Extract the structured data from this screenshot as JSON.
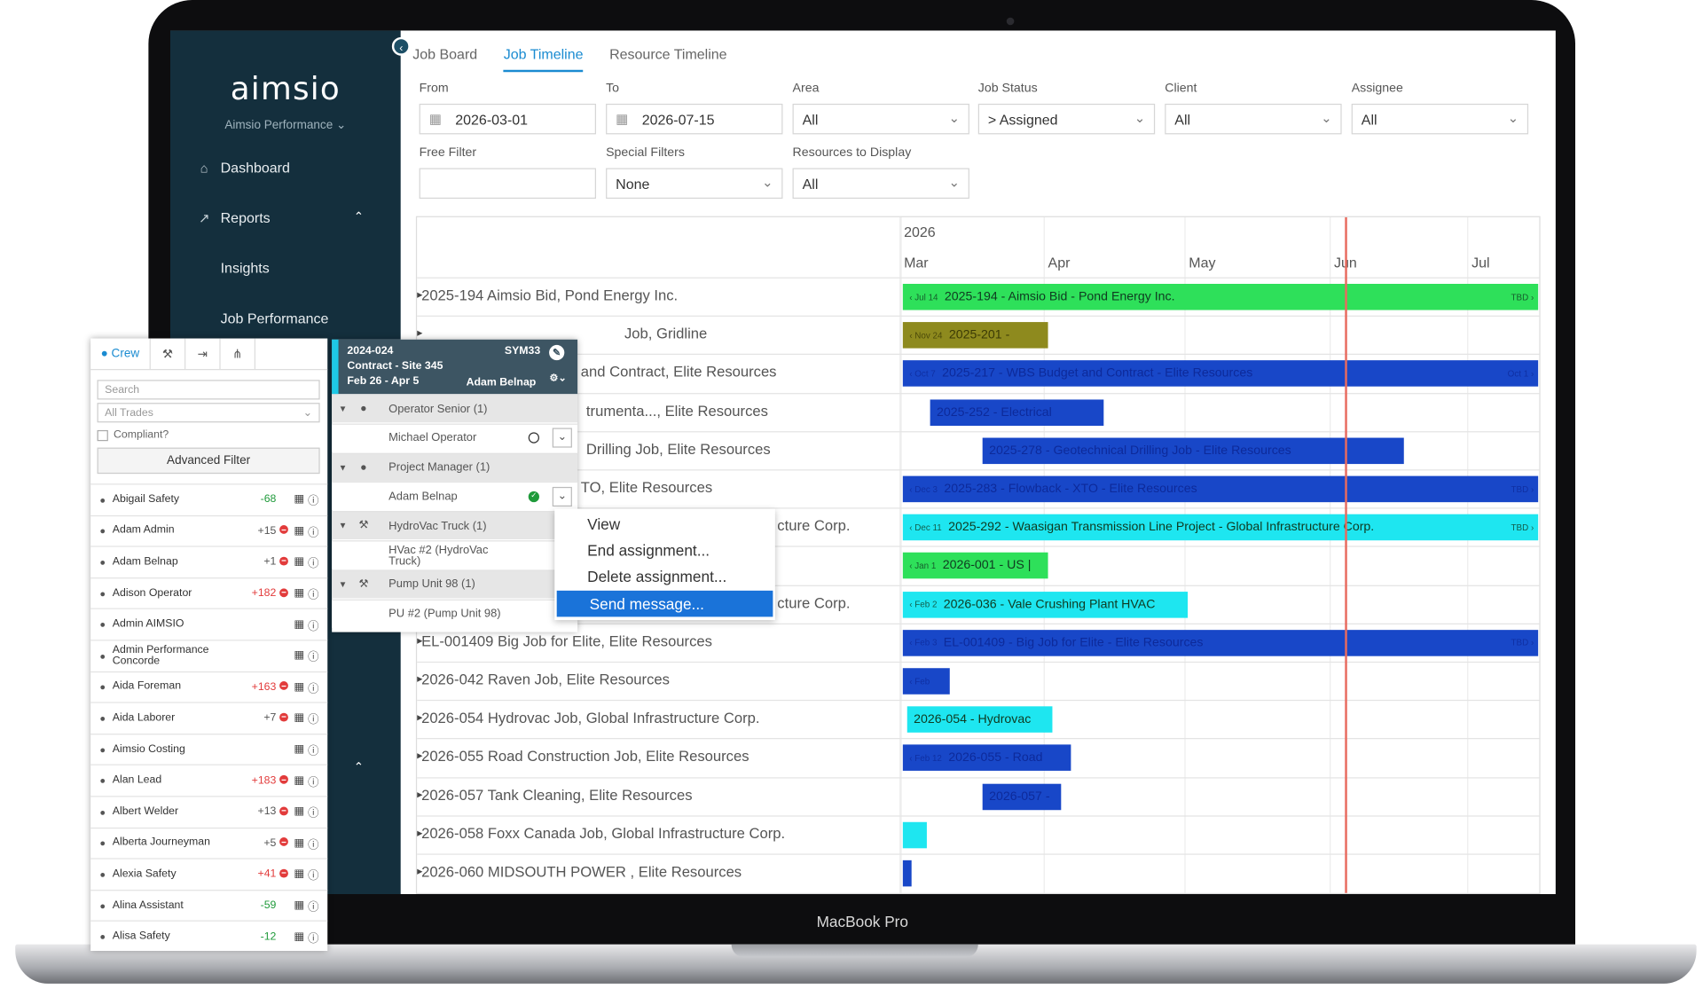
{
  "device_label": "MacBook Pro",
  "app": {
    "logo": "aimsio",
    "org": "Aimsio Performance ⌄"
  },
  "sidebar": {
    "items": [
      {
        "label": "Dashboard",
        "icon": "home-icon"
      },
      {
        "label": "Reports",
        "icon": "chart-icon"
      },
      {
        "label": "Insights"
      },
      {
        "label": "Job Performance"
      }
    ]
  },
  "tabs": [
    "Job Board",
    "Job Timeline",
    "Resource Timeline"
  ],
  "filters": {
    "from_label": "From",
    "from_value": "2026-03-01",
    "to_label": "To",
    "to_value": "2026-07-15",
    "area_label": "Area",
    "area_value": "All",
    "job_status_label": "Job Status",
    "job_status_value": "> Assigned",
    "client_label": "Client",
    "client_value": "All",
    "assignee_label": "Assignee",
    "assignee_value": "All",
    "free_filter_label": "Free Filter",
    "free_filter_value": "",
    "special_filters_label": "Special Filters",
    "special_filters_value": "None",
    "resources_label": "Resources to Display",
    "resources_value": "All"
  },
  "timeline": {
    "year": "2026",
    "months": [
      "Mar",
      "Apr",
      "May",
      "Jun",
      "Jul"
    ],
    "rows": [
      {
        "label": "2025-194 Aimsio Bid, Pond Energy Inc.",
        "bar": "2025-194 - Aimsio Bid - Pond Energy Inc.",
        "start_tag": "Jul 14",
        "end_tag": "TBD",
        "color": "#2ee05a"
      },
      {
        "label": "Job, Gridline",
        "bar": "2025-201 -",
        "start_tag": "Nov 24",
        "end_tag": "",
        "color": "#8e8a1e"
      },
      {
        "label": "and Contract, Elite Resources",
        "bar": "2025-217 - WBS Budget and Contract - Elite Resources",
        "start_tag": "Oct 7",
        "end_tag": "Oct 1",
        "color": "#1847c8"
      },
      {
        "label": "trumenta..., Elite Resources",
        "bar": "2025-252 - Electrical",
        "start_tag": "",
        "end_tag": "",
        "color": "#1847c8"
      },
      {
        "label": "Drilling Job, Elite Resources",
        "bar": "2025-278 - Geotechnical Drilling Job - Elite Resources",
        "start_tag": "",
        "end_tag": "",
        "color": "#1847c8"
      },
      {
        "label": "TO, Elite Resources",
        "bar": "2025-283 - Flowback - XTO - Elite Resources",
        "start_tag": "Dec 3",
        "end_tag": "TBD",
        "color": "#1847c8"
      },
      {
        "label": "cture Corp.",
        "bar": "2025-292 - Waasigan Transmission Line Project - Global Infrastructure Corp.",
        "start_tag": "Dec 11",
        "end_tag": "TBD",
        "color": "#1ee6f0"
      },
      {
        "label": "",
        "bar": "2026-001 - US |",
        "start_tag": "Jan 1",
        "end_tag": "",
        "color": "#2ee05a"
      },
      {
        "label": "cture Corp.",
        "bar": "2026-036 - Vale Crushing Plant HVAC",
        "start_tag": "Feb 2",
        "end_tag": "",
        "color": "#1ee6f0"
      },
      {
        "label": "EL-001409 Big Job for Elite, Elite Resources",
        "bar": "EL-001409 - Big Job for Elite - Elite Resources",
        "start_tag": "Feb 3",
        "end_tag": "TBD",
        "color": "#1847c8"
      },
      {
        "label": "2026-042 Raven Job, Elite Resources",
        "bar": "",
        "start_tag": "Feb",
        "end_tag": "",
        "color": "#1847c8"
      },
      {
        "label": "2026-054 Hydrovac Job, Global Infrastructure Corp.",
        "bar": "2026-054 - Hydrovac",
        "start_tag": "",
        "end_tag": "",
        "color": "#1ee6f0"
      },
      {
        "label": "2026-055 Road Construction Job, Elite Resources",
        "bar": "2026-055 - Road",
        "start_tag": "Feb 12",
        "end_tag": "",
        "color": "#1847c8"
      },
      {
        "label": "2026-057 Tank Cleaning, Elite Resources",
        "bar": "2026-057 -",
        "start_tag": "",
        "end_tag": "",
        "color": "#1847c8"
      },
      {
        "label": "2026-058 Foxx Canada Job, Global Infrastructure Corp.",
        "bar": "",
        "start_tag": "",
        "end_tag": "",
        "color": "#1ee6f0"
      },
      {
        "label": "2026-060 MIDSOUTH POWER , Elite Resources",
        "bar": "",
        "start_tag": "",
        "end_tag": "",
        "color": "#1847c8"
      }
    ]
  },
  "crew_panel": {
    "tab_crew": "Crew",
    "search_placeholder": "Search",
    "trades_value": "All Trades",
    "compliant_label": "Compliant?",
    "advanced_filter": "Advanced Filter",
    "people": [
      {
        "name": "Abigail Safety",
        "score": "-68",
        "score_color": "#1f9a3a",
        "alert": false
      },
      {
        "name": "Adam Admin",
        "score": "+15",
        "score_color": "#555",
        "alert": true
      },
      {
        "name": "Adam Belnap",
        "score": "+1",
        "score_color": "#555",
        "alert": true
      },
      {
        "name": "Adison Operator",
        "score": "+182",
        "score_color": "#e23b3b",
        "alert": true
      },
      {
        "name": "Admin AIMSIO",
        "score": "",
        "score_color": "#555",
        "alert": false
      },
      {
        "name": "Admin Performance Concorde",
        "score": "",
        "score_color": "#555",
        "alert": false
      },
      {
        "name": "Aida Foreman",
        "score": "+163",
        "score_color": "#e23b3b",
        "alert": true
      },
      {
        "name": "Aida Laborer",
        "score": "+7",
        "score_color": "#555",
        "alert": true
      },
      {
        "name": "Aimsio Costing",
        "score": "",
        "score_color": "#555",
        "alert": false
      },
      {
        "name": "Alan Lead",
        "score": "+183",
        "score_color": "#e23b3b",
        "alert": true
      },
      {
        "name": "Albert Welder",
        "score": "+13",
        "score_color": "#555",
        "alert": true
      },
      {
        "name": "Alberta Journeyman",
        "score": "+5",
        "score_color": "#555",
        "alert": true
      },
      {
        "name": "Alexia Safety",
        "score": "+41",
        "score_color": "#e23b3b",
        "alert": true
      },
      {
        "name": "Alina Assistant",
        "score": "-59",
        "score_color": "#1f9a3a",
        "alert": false
      },
      {
        "name": "Alisa Safety",
        "score": "-12",
        "score_color": "#1f9a3a",
        "alert": false
      }
    ]
  },
  "job_popup": {
    "job_id": "2024-024",
    "code": "SYM33",
    "title": "Contract - Site 345",
    "dates": "Feb 26 - Apr 5",
    "owner": "Adam Belnap",
    "rows": [
      {
        "label": "Operator Senior (1)",
        "type": "group",
        "icon": "person-icon"
      },
      {
        "label": "Michael Operator",
        "type": "item",
        "status": "open"
      },
      {
        "label": "Project Manager (1)",
        "type": "group",
        "icon": "person-icon"
      },
      {
        "label": "Adam Belnap",
        "type": "item",
        "status": "done"
      },
      {
        "label": "HydroVac Truck (1)",
        "type": "group",
        "icon": "wrench-icon"
      },
      {
        "label": "HVac #2 (HydroVac Truck)",
        "type": "item",
        "status": ""
      },
      {
        "label": "Pump Unit 98 (1)",
        "type": "group",
        "icon": "wrench-icon"
      },
      {
        "label": "PU #2 (Pump Unit 98)",
        "type": "item",
        "status": ""
      }
    ]
  },
  "context_menu": [
    "View",
    "End assignment...",
    "Delete assignment...",
    "Send message..."
  ]
}
